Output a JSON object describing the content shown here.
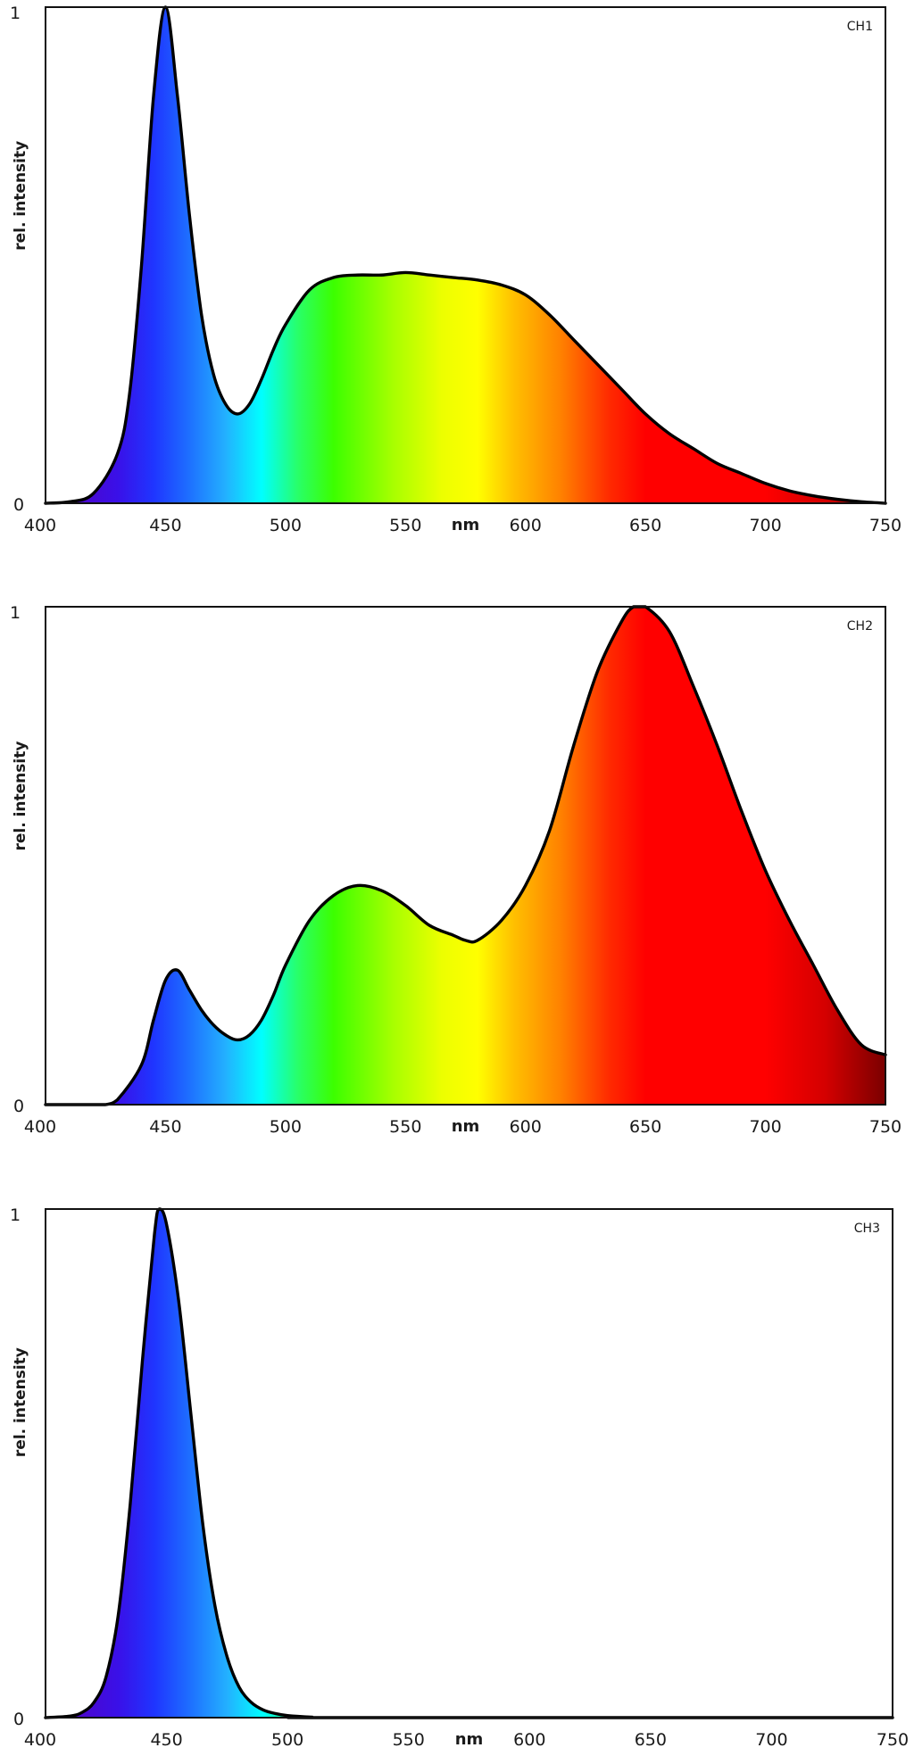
{
  "chart_data": [
    {
      "type": "area",
      "channel_label": "CH1",
      "xlabel": "nm",
      "ylabel": "rel. intensity",
      "xlim": [
        400,
        750
      ],
      "ylim": [
        0,
        1
      ],
      "x_ticks": [
        400,
        450,
        500,
        550,
        600,
        650,
        700,
        750
      ],
      "y_ticks": [
        0,
        1
      ],
      "fill": "visible-spectrum gradient",
      "x": [
        400,
        410,
        420,
        430,
        435,
        440,
        445,
        450,
        455,
        460,
        465,
        470,
        475,
        480,
        485,
        490,
        495,
        500,
        510,
        520,
        530,
        540,
        550,
        560,
        570,
        580,
        590,
        600,
        610,
        620,
        630,
        640,
        650,
        660,
        670,
        680,
        690,
        700,
        710,
        720,
        730,
        740,
        750
      ],
      "y": [
        0.0,
        0.003,
        0.02,
        0.1,
        0.22,
        0.48,
        0.82,
        1.0,
        0.82,
        0.58,
        0.38,
        0.26,
        0.2,
        0.18,
        0.2,
        0.25,
        0.31,
        0.36,
        0.43,
        0.455,
        0.46,
        0.46,
        0.465,
        0.46,
        0.455,
        0.45,
        0.44,
        0.42,
        0.38,
        0.33,
        0.28,
        0.23,
        0.18,
        0.14,
        0.11,
        0.08,
        0.06,
        0.04,
        0.025,
        0.015,
        0.008,
        0.003,
        0.0
      ]
    },
    {
      "type": "area",
      "channel_label": "CH2",
      "xlabel": "nm",
      "ylabel": "rel. intensity",
      "xlim": [
        400,
        750
      ],
      "ylim": [
        0,
        1
      ],
      "x_ticks": [
        400,
        450,
        500,
        550,
        600,
        650,
        700,
        750
      ],
      "y_ticks": [
        0,
        1
      ],
      "fill": "visible-spectrum gradient",
      "x": [
        400,
        420,
        425,
        430,
        440,
        445,
        450,
        455,
        460,
        465,
        470,
        475,
        480,
        485,
        490,
        495,
        500,
        510,
        520,
        530,
        540,
        550,
        560,
        570,
        575,
        580,
        590,
        600,
        610,
        620,
        630,
        640,
        645,
        650,
        660,
        670,
        680,
        690,
        700,
        710,
        720,
        730,
        740,
        750
      ],
      "y": [
        0.0,
        0.0,
        0.0,
        0.01,
        0.08,
        0.17,
        0.25,
        0.27,
        0.23,
        0.19,
        0.16,
        0.14,
        0.13,
        0.14,
        0.17,
        0.22,
        0.28,
        0.37,
        0.42,
        0.44,
        0.43,
        0.4,
        0.36,
        0.34,
        0.33,
        0.33,
        0.37,
        0.44,
        0.55,
        0.72,
        0.87,
        0.97,
        1.0,
        1.0,
        0.95,
        0.84,
        0.72,
        0.59,
        0.47,
        0.37,
        0.28,
        0.19,
        0.12,
        0.1
      ]
    },
    {
      "type": "area",
      "channel_label": "CH3",
      "xlabel": "nm",
      "ylabel": "rel. intensity",
      "xlim": [
        400,
        750
      ],
      "ylim": [
        0,
        1
      ],
      "x_ticks": [
        400,
        450,
        500,
        550,
        600,
        650,
        700,
        750
      ],
      "y_ticks": [
        0,
        1
      ],
      "fill": "visible-spectrum gradient",
      "x": [
        400,
        410,
        415,
        420,
        425,
        430,
        435,
        440,
        445,
        447,
        450,
        455,
        460,
        465,
        470,
        475,
        480,
        485,
        490,
        495,
        500,
        510,
        520,
        750
      ],
      "y": [
        0.0,
        0.003,
        0.01,
        0.03,
        0.08,
        0.2,
        0.42,
        0.7,
        0.95,
        1.0,
        0.97,
        0.82,
        0.6,
        0.38,
        0.22,
        0.12,
        0.06,
        0.03,
        0.015,
        0.008,
        0.004,
        0.001,
        0.0,
        0.0
      ]
    }
  ]
}
